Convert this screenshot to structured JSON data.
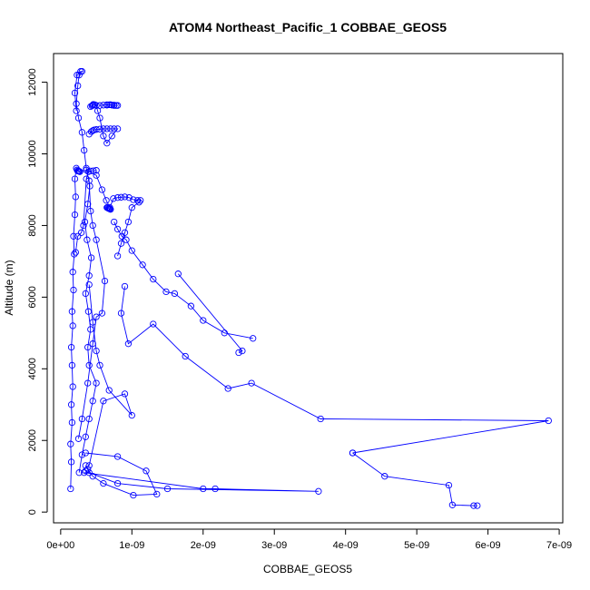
{
  "chart_data": {
    "type": "line",
    "title": "ATOM4 Northeast_Pacific_1 COBBAE_GEOS5",
    "xlabel": "COBBAE_GEOS5",
    "ylabel": "Altitude (m)",
    "xlim": [
      -1e-10,
      7.05e-09
    ],
    "ylim": [
      -300,
      12800
    ],
    "x_ticks": [
      0,
      1e-09,
      2e-09,
      3e-09,
      4e-09,
      5e-09,
      6e-09,
      7e-09
    ],
    "x_tick_labels": [
      "0e+00",
      "1e-09",
      "2e-09",
      "3e-09",
      "4e-09",
      "5e-09",
      "6e-09",
      "7e-09"
    ],
    "y_ticks": [
      0,
      2000,
      4000,
      6000,
      8000,
      10000,
      12000
    ],
    "y_tick_labels": [
      "0",
      "2000",
      "4000",
      "6000",
      "8000",
      "10000",
      "12000"
    ],
    "grid": false,
    "legend": "none",
    "series_color": "#0000ff",
    "series": [
      {
        "x": [
          1.4e-10,
          1.5e-10,
          1.4e-10,
          1.6e-10,
          1.5e-10,
          1.7e-10,
          1.6e-10,
          1.5e-10,
          1.7e-10,
          1.6e-10,
          1.8e-10,
          1.7e-10,
          1.9e-10,
          1.8e-10,
          2e-10,
          2.1e-10,
          2e-10,
          2.2e-10,
          2.3e-10,
          2.4e-10,
          2.5e-10,
          2.6e-10,
          2.7e-10
        ],
        "y": [
          650,
          1400,
          1900,
          2500,
          3000,
          3500,
          4100,
          4600,
          5200,
          5600,
          6200,
          6700,
          7200,
          7700,
          8300,
          8800,
          9300,
          9600,
          9550,
          9520,
          9520,
          9510,
          9500
        ]
      },
      {
        "x": [
          2.6e-10,
          3e-10,
          3.5e-10,
          4e-10,
          4.5e-10,
          5e-10,
          4e-10,
          3.8e-10,
          4.2e-10,
          3.9e-10,
          3.5e-10,
          4e-10,
          4.3e-10,
          3.7e-10,
          3.4e-10,
          3.8e-10,
          4.1e-10,
          3.6e-10,
          3.3e-10,
          3e-10,
          2.5e-10,
          2.2e-10,
          2.4e-10,
          2.6e-10,
          2.8e-10,
          3e-10,
          2.3e-10,
          2e-10,
          2.2e-10
        ],
        "y": [
          1100,
          1600,
          2100,
          2600,
          3100,
          3600,
          4100,
          4600,
          5100,
          5600,
          6100,
          6600,
          7100,
          7600,
          8100,
          8600,
          9100,
          9600,
          10100,
          10600,
          11000,
          11400,
          11900,
          12200,
          12300,
          12300,
          12200,
          11700,
          11200
        ]
      },
      {
        "x": [
          4e-10,
          4.3e-10,
          4.5e-10,
          4.7e-10,
          5e-10,
          5.5e-10,
          6e-10,
          6.5e-10,
          7e-10,
          7.5e-10,
          8e-10,
          7.2e-10,
          6.5e-10,
          6e-10,
          5.5e-10,
          5.2e-10,
          5e-10,
          4.8e-10,
          4.6e-10,
          4.5e-10,
          4.4e-10,
          4.2e-10
        ],
        "y": [
          10550,
          10620,
          10650,
          10670,
          10680,
          10690,
          10700,
          10700,
          10700,
          10700,
          10700,
          10500,
          10300,
          10500,
          11000,
          11200,
          11350,
          11370,
          11380,
          11360,
          11340,
          11320
        ]
      },
      {
        "x": [
          5.5e-10,
          6e-10,
          6.5e-10,
          7e-10,
          7.5e-10,
          8e-10,
          7.8e-10,
          7.5e-10,
          7.2e-10,
          7e-10,
          6.8e-10,
          6.5e-10
        ],
        "y": [
          11350,
          11360,
          11370,
          11370,
          11360,
          11350,
          11350,
          11350,
          11360,
          11370,
          11370,
          11360
        ]
      },
      {
        "x": [
          3.6e-10,
          5e-10,
          5.8e-10,
          6.4e-10,
          6.9e-10,
          7.4e-10,
          8e-10,
          8.5e-10,
          9e-10,
          9.6e-10,
          1.02e-09,
          1.08e-09,
          1.12e-09,
          1.1e-09,
          1e-09,
          9.5e-10,
          9e-10,
          8.5e-10,
          8e-10
        ],
        "y": [
          9550,
          9400,
          9000,
          8700,
          8500,
          8750,
          8780,
          8790,
          8800,
          8780,
          8720,
          8700,
          8700,
          8650,
          8500,
          8100,
          7800,
          7500,
          7150
        ]
      },
      {
        "x": [
          6.5e-10,
          6.6e-10,
          6.7e-10,
          6.8e-10,
          6.9e-10,
          7e-10
        ],
        "y": [
          8500,
          8500,
          8480,
          8470,
          8460,
          8450
        ]
      },
      {
        "x": [
          7.5e-10,
          8e-10,
          8.6e-10,
          9.2e-10,
          1e-09,
          1.15e-09,
          1.3e-09,
          1.48e-09,
          1.6e-09,
          1.83e-09,
          2e-09,
          2.3e-09,
          2.7e-09
        ],
        "y": [
          8100,
          7900,
          7700,
          7600,
          7300,
          6900,
          6500,
          6150,
          6100,
          5750,
          5350,
          5000,
          4850
        ]
      },
      {
        "x": [
          9e-10,
          8.5e-10,
          9.5e-10,
          1.3e-09,
          1.75e-09,
          2.35e-09,
          2.68e-09,
          3.65e-09,
          6.85e-09,
          4.1e-09
        ],
        "y": [
          6300,
          5550,
          4700,
          5250,
          4350,
          3450,
          3600,
          2600,
          2550,
          1650
        ]
      },
      {
        "x": [
          1.65e-09,
          2.55e-09,
          2.5e-09
        ],
        "y": [
          6650,
          4500,
          4450
        ]
      },
      {
        "x": [
          4.1e-09,
          4.55e-09,
          5.45e-09,
          5.5e-09,
          5.8e-09,
          5.85e-09
        ],
        "y": [
          1650,
          1000,
          750,
          200,
          180,
          180
        ]
      },
      {
        "x": [
          4e-10,
          6e-10,
          9e-10,
          1e-09,
          6.8e-10,
          5.5e-10,
          5e-10,
          4.5e-10,
          4e-10
        ],
        "y": [
          1300,
          3100,
          3300,
          2700,
          3400,
          4100,
          4500,
          5300,
          6350
        ]
      },
      {
        "x": [
          3.5e-10,
          8e-10,
          1.2e-09,
          1.35e-09,
          1.02e-09,
          6e-10,
          4.5e-10,
          3.8e-10,
          3.5e-10
        ],
        "y": [
          1650,
          1550,
          1150,
          500,
          470,
          800,
          1000,
          1200,
          1300
        ]
      },
      {
        "x": [
          3.3e-10,
          2e-09,
          2.17e-09,
          3.62e-09,
          1.5e-09,
          8e-10,
          4e-10,
          3.5e-10
        ],
        "y": [
          1100,
          650,
          650,
          580,
          650,
          800,
          1100,
          1150
        ]
      },
      {
        "x": [
          2.5e-10,
          3e-10,
          3.8e-10,
          4.5e-10,
          5e-10,
          5.8e-10,
          6.2e-10,
          5e-10,
          4.5e-10,
          4.2e-10,
          4e-10
        ],
        "y": [
          2050,
          2600,
          3600,
          4700,
          5450,
          5550,
          6450,
          7600,
          8000,
          8400,
          9250
        ]
      },
      {
        "x": [
          2.1e-10,
          2.4e-10,
          2.9e-10,
          3.2e-10,
          3.6e-10,
          3.9e-10,
          4.2e-10,
          4.6e-10,
          5e-10
        ],
        "y": [
          7250,
          7700,
          7800,
          8000,
          9300,
          9500,
          9520,
          9530,
          9540
        ]
      }
    ]
  }
}
